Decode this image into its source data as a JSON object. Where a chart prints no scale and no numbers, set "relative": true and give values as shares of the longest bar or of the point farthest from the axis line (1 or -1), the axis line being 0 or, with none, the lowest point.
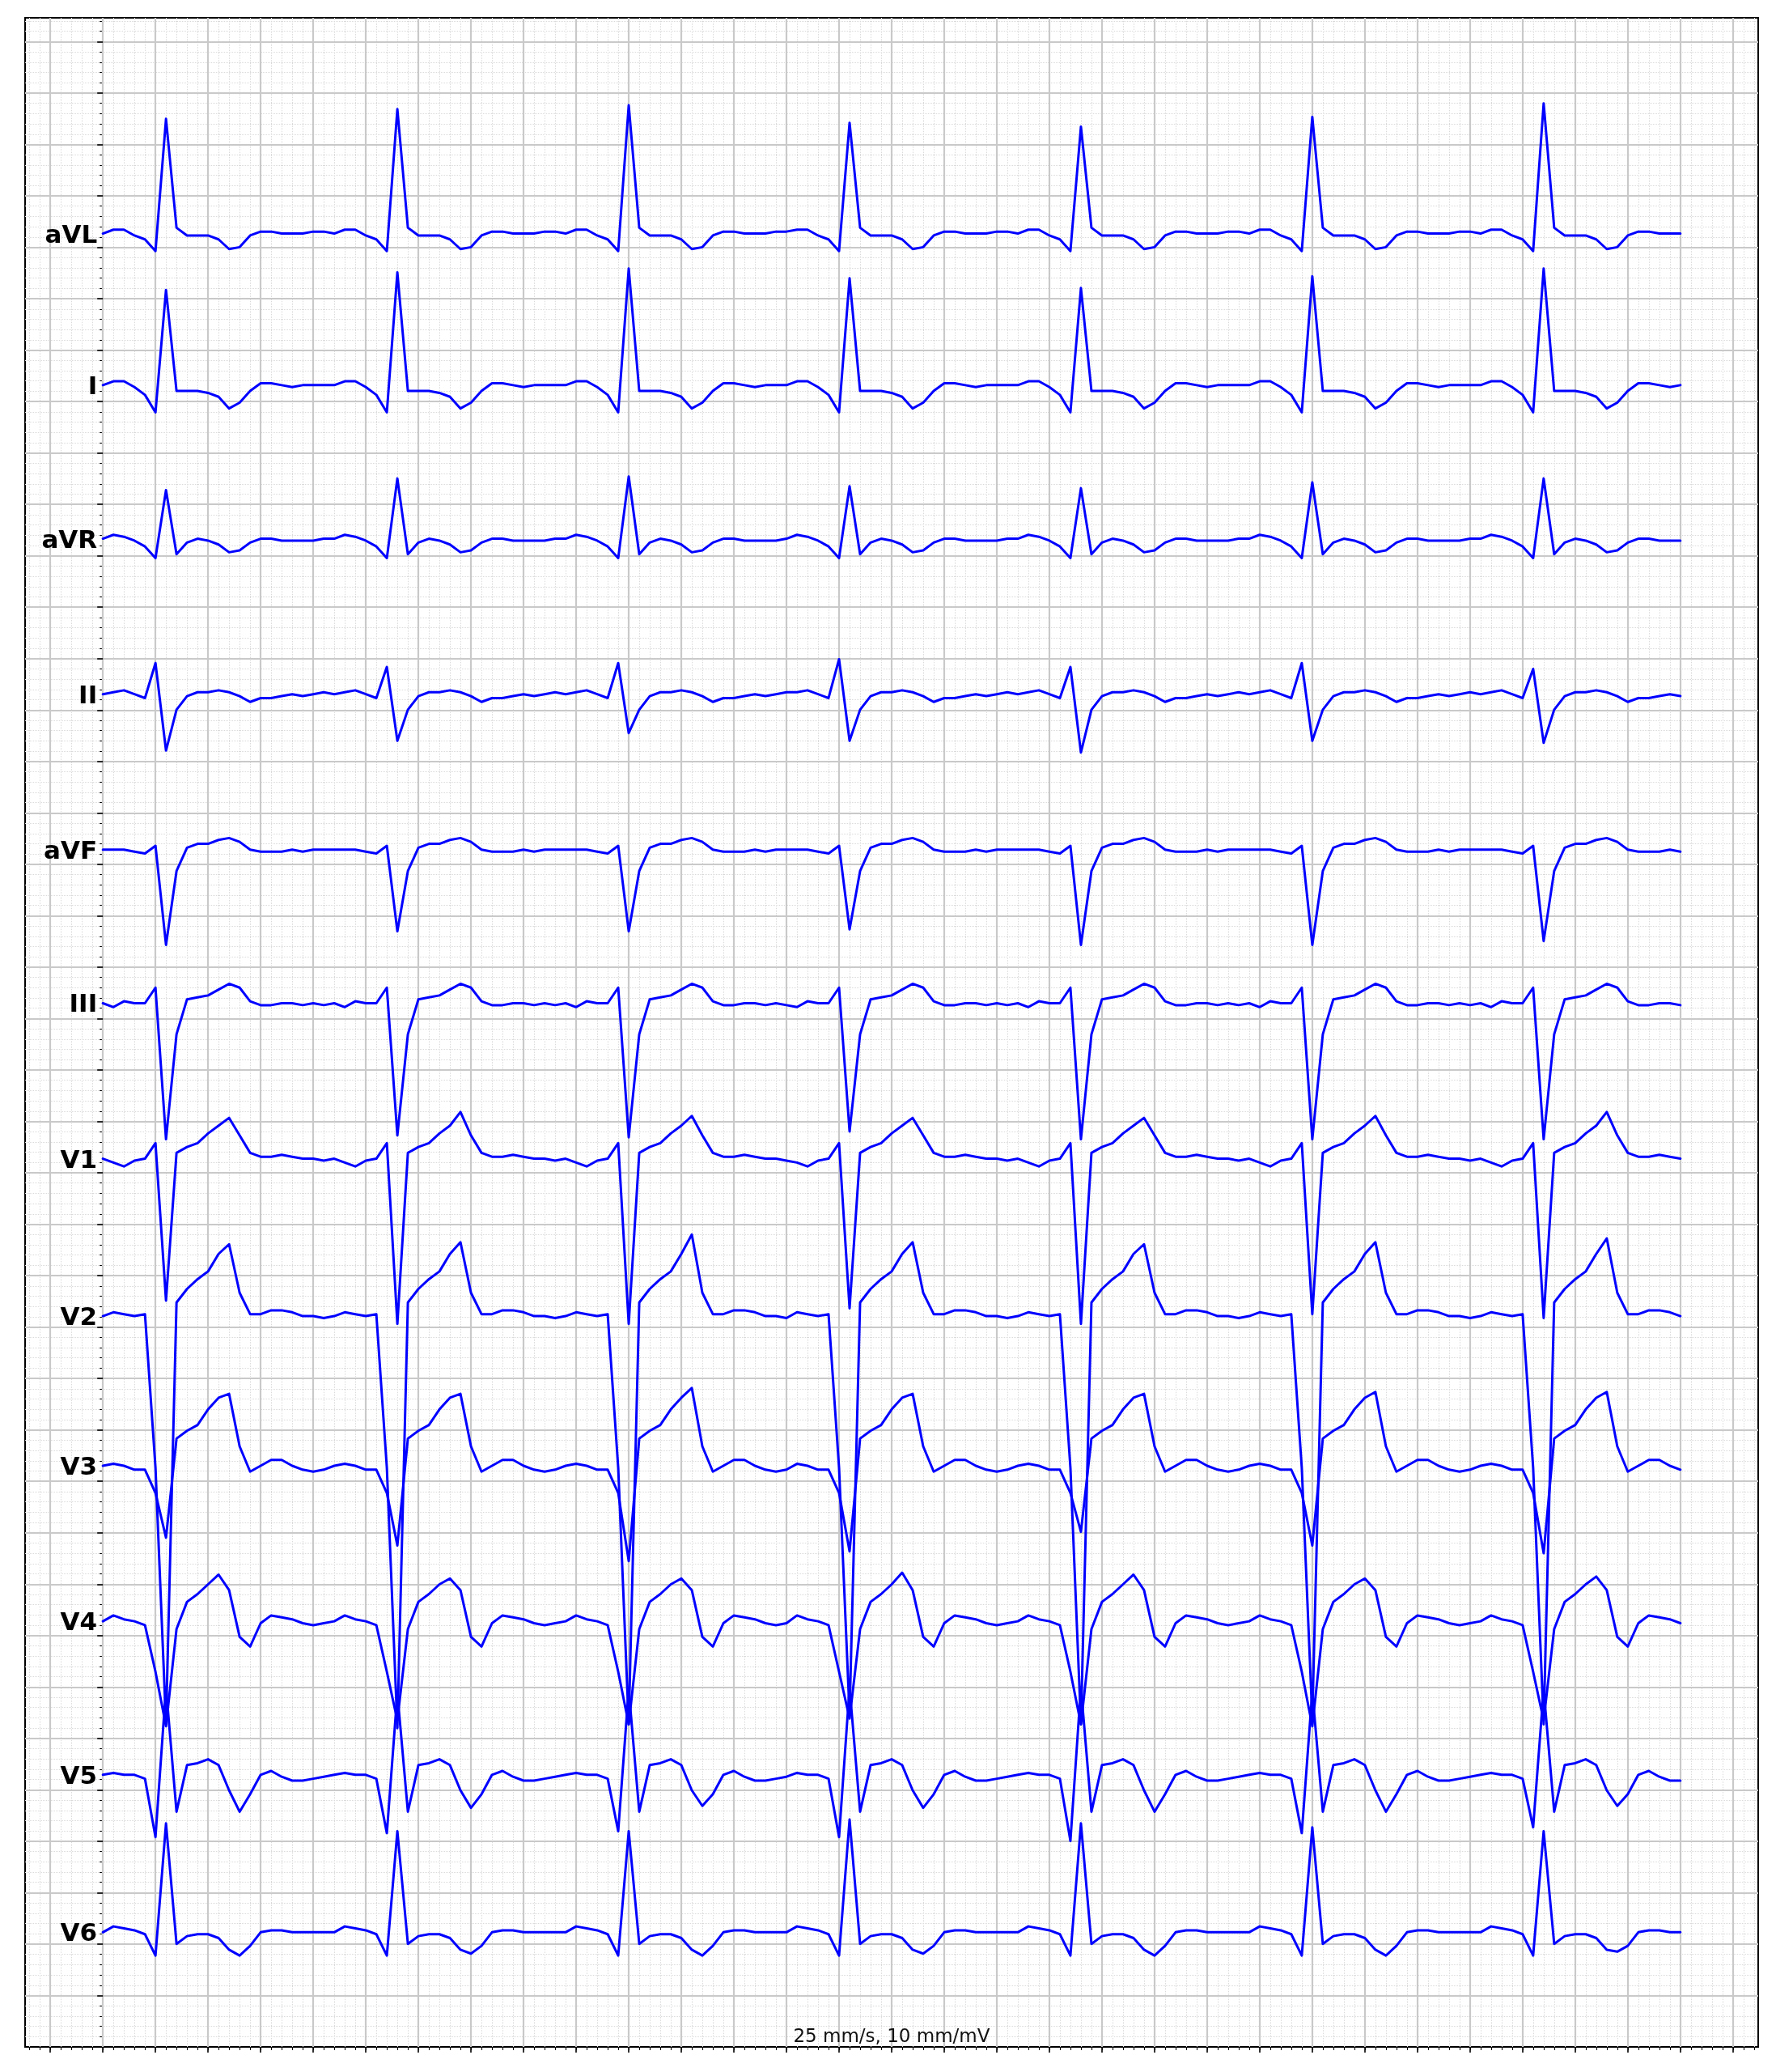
{
  "chart_data": {
    "type": "line",
    "relative": true,
    "grid": true,
    "annotations": [
      "25 mm/s, 10 mm/mV"
    ],
    "categories": [
      null,
      null,
      null,
      null,
      null,
      null,
      null,
      null,
      null,
      null,
      null,
      null,
      null,
      null,
      null,
      null,
      null,
      null,
      null,
      null,
      null,
      null,
      null,
      null,
      null,
      null,
      null,
      null,
      null,
      null,
      null,
      null,
      null,
      null,
      null,
      null,
      null,
      null,
      null,
      null,
      null,
      null,
      null,
      null,
      null,
      null,
      null,
      null,
      null,
      null,
      null,
      null,
      null,
      null,
      null,
      null,
      null,
      null,
      null,
      null,
      null,
      null,
      null,
      null,
      null,
      null,
      null,
      null,
      null,
      null,
      null,
      null,
      null,
      null,
      null,
      null,
      null,
      null,
      null,
      null,
      null,
      null,
      null,
      null,
      null,
      null,
      null,
      null,
      null,
      null,
      null,
      null,
      null,
      null,
      null,
      null,
      null,
      null,
      null,
      null,
      null,
      null,
      null,
      null,
      null,
      null,
      null,
      null,
      null,
      null,
      null,
      null,
      null,
      null,
      null,
      null,
      null,
      null,
      null,
      null,
      null,
      null,
      null,
      null,
      null,
      null,
      null,
      null,
      null,
      null,
      null,
      null,
      null,
      null,
      null,
      null,
      null,
      null,
      null,
      null,
      null,
      null,
      null,
      null,
      null,
      null,
      null,
      null,
      null,
      null,
      null
    ],
    "series": [
      {
        "name": "aVL",
        "color": "#0000ff",
        "values": [
          0.933,
          0.935,
          0.935,
          0.932,
          0.93,
          0.924,
          0.992,
          0.936,
          0.932,
          0.932,
          0.932,
          0.93,
          0.925,
          0.926,
          0.932,
          0.934,
          0.934,
          0.933,
          0.933,
          0.933,
          0.934,
          0.934,
          0.933,
          0.935,
          0.935,
          0.932,
          0.93,
          0.924,
          0.997,
          0.936,
          0.932,
          0.932,
          0.932,
          0.93,
          0.925,
          0.926,
          0.932,
          0.934,
          0.934,
          0.933,
          0.933,
          0.933,
          0.934,
          0.934,
          0.933,
          0.935,
          0.935,
          0.932,
          0.93,
          0.924,
          0.999,
          0.936,
          0.932,
          0.932,
          0.932,
          0.93,
          0.925,
          0.926,
          0.932,
          0.934,
          0.934,
          0.933,
          0.933,
          0.933,
          0.934,
          0.934,
          0.935,
          0.935,
          0.932,
          0.93,
          0.924,
          0.99,
          0.936,
          0.932,
          0.932,
          0.932,
          0.93,
          0.925,
          0.926,
          0.932,
          0.934,
          0.934,
          0.933,
          0.933,
          0.933,
          0.934,
          0.934,
          0.933,
          0.935,
          0.935,
          0.932,
          0.93,
          0.924,
          0.988,
          0.936,
          0.932,
          0.932,
          0.932,
          0.93,
          0.925,
          0.926,
          0.932,
          0.934,
          0.934,
          0.933,
          0.933,
          0.933,
          0.934,
          0.934,
          0.933,
          0.935,
          0.935,
          0.932,
          0.93,
          0.924,
          0.993,
          0.936,
          0.932,
          0.932,
          0.932,
          0.93,
          0.925,
          0.926,
          0.932,
          0.934,
          0.934,
          0.933,
          0.933,
          0.933,
          0.934,
          0.934,
          0.933,
          0.935,
          0.935,
          0.932,
          0.93,
          0.924,
          1.0,
          0.936,
          0.932,
          0.932,
          0.932,
          0.93,
          0.925,
          0.926,
          0.932,
          0.934,
          0.934,
          0.933,
          0.933,
          0.933
        ]
      },
      {
        "name": "I",
        "color": "#0000ff",
        "values": [
          0.855,
          0.857,
          0.857,
          0.854,
          0.85,
          0.841,
          0.904,
          0.852,
          0.852,
          0.852,
          0.851,
          0.849,
          0.843,
          0.846,
          0.852,
          0.856,
          0.856,
          0.855,
          0.854,
          0.855,
          0.855,
          0.855,
          0.855,
          0.857,
          0.857,
          0.854,
          0.85,
          0.841,
          0.913,
          0.852,
          0.852,
          0.852,
          0.851,
          0.849,
          0.843,
          0.846,
          0.852,
          0.856,
          0.856,
          0.855,
          0.854,
          0.855,
          0.855,
          0.855,
          0.855,
          0.857,
          0.857,
          0.854,
          0.85,
          0.841,
          0.915,
          0.852,
          0.852,
          0.852,
          0.851,
          0.849,
          0.843,
          0.846,
          0.852,
          0.856,
          0.856,
          0.855,
          0.854,
          0.855,
          0.855,
          0.855,
          0.857,
          0.857,
          0.854,
          0.85,
          0.841,
          0.91,
          0.852,
          0.852,
          0.852,
          0.851,
          0.849,
          0.843,
          0.846,
          0.852,
          0.856,
          0.856,
          0.855,
          0.854,
          0.855,
          0.855,
          0.855,
          0.855,
          0.857,
          0.857,
          0.854,
          0.85,
          0.841,
          0.905,
          0.852,
          0.852,
          0.852,
          0.851,
          0.849,
          0.843,
          0.846,
          0.852,
          0.856,
          0.856,
          0.855,
          0.854,
          0.855,
          0.855,
          0.855,
          0.855,
          0.857,
          0.857,
          0.854,
          0.85,
          0.841,
          0.911,
          0.852,
          0.852,
          0.852,
          0.851,
          0.849,
          0.843,
          0.846,
          0.852,
          0.856,
          0.856,
          0.855,
          0.854,
          0.855,
          0.855,
          0.855,
          0.855,
          0.857,
          0.857,
          0.854,
          0.85,
          0.841,
          0.915,
          0.852,
          0.852,
          0.852,
          0.851,
          0.849,
          0.843,
          0.846,
          0.852,
          0.856,
          0.856,
          0.855,
          0.854,
          0.855
        ]
      },
      {
        "name": "aVR",
        "color": "#0000ff",
        "values": [
          0.776,
          0.778,
          0.777,
          0.775,
          0.772,
          0.766,
          0.801,
          0.768,
          0.774,
          0.776,
          0.775,
          0.773,
          0.769,
          0.77,
          0.774,
          0.776,
          0.776,
          0.775,
          0.775,
          0.775,
          0.775,
          0.776,
          0.776,
          0.778,
          0.777,
          0.775,
          0.772,
          0.766,
          0.807,
          0.768,
          0.774,
          0.776,
          0.775,
          0.773,
          0.769,
          0.77,
          0.774,
          0.776,
          0.776,
          0.775,
          0.775,
          0.775,
          0.775,
          0.776,
          0.776,
          0.778,
          0.777,
          0.775,
          0.772,
          0.766,
          0.808,
          0.768,
          0.774,
          0.776,
          0.775,
          0.773,
          0.769,
          0.77,
          0.774,
          0.776,
          0.776,
          0.775,
          0.775,
          0.775,
          0.775,
          0.776,
          0.778,
          0.777,
          0.775,
          0.772,
          0.766,
          0.803,
          0.768,
          0.774,
          0.776,
          0.775,
          0.773,
          0.769,
          0.77,
          0.774,
          0.776,
          0.776,
          0.775,
          0.775,
          0.775,
          0.775,
          0.776,
          0.776,
          0.778,
          0.777,
          0.775,
          0.772,
          0.766,
          0.802,
          0.768,
          0.774,
          0.776,
          0.775,
          0.773,
          0.769,
          0.77,
          0.774,
          0.776,
          0.776,
          0.775,
          0.775,
          0.775,
          0.775,
          0.776,
          0.776,
          0.778,
          0.777,
          0.775,
          0.772,
          0.766,
          0.805,
          0.768,
          0.774,
          0.776,
          0.775,
          0.773,
          0.769,
          0.77,
          0.774,
          0.776,
          0.776,
          0.775,
          0.775,
          0.775,
          0.775,
          0.776,
          0.776,
          0.778,
          0.777,
          0.775,
          0.772,
          0.766,
          0.807,
          0.768,
          0.774,
          0.776,
          0.775,
          0.773,
          0.769,
          0.77,
          0.774,
          0.776,
          0.776,
          0.775,
          0.775,
          0.775
        ]
      },
      {
        "name": "II",
        "color": "#0000ff",
        "values": [
          0.696,
          0.697,
          0.698,
          0.696,
          0.694,
          0.712,
          0.667,
          0.688,
          0.695,
          0.697,
          0.697,
          0.698,
          0.697,
          0.695,
          0.692,
          0.694,
          0.694,
          0.695,
          0.696,
          0.695,
          0.696,
          0.697,
          0.696,
          0.697,
          0.698,
          0.696,
          0.694,
          0.71,
          0.672,
          0.688,
          0.695,
          0.697,
          0.697,
          0.698,
          0.697,
          0.695,
          0.692,
          0.694,
          0.694,
          0.695,
          0.696,
          0.695,
          0.696,
          0.697,
          0.696,
          0.697,
          0.698,
          0.696,
          0.694,
          0.712,
          0.676,
          0.688,
          0.695,
          0.697,
          0.697,
          0.698,
          0.697,
          0.695,
          0.692,
          0.694,
          0.694,
          0.695,
          0.696,
          0.695,
          0.696,
          0.697,
          0.697,
          0.698,
          0.696,
          0.694,
          0.714,
          0.672,
          0.688,
          0.695,
          0.697,
          0.697,
          0.698,
          0.697,
          0.695,
          0.692,
          0.694,
          0.694,
          0.695,
          0.696,
          0.695,
          0.696,
          0.697,
          0.696,
          0.697,
          0.698,
          0.696,
          0.694,
          0.71,
          0.666,
          0.688,
          0.695,
          0.697,
          0.697,
          0.698,
          0.697,
          0.695,
          0.692,
          0.694,
          0.694,
          0.695,
          0.696,
          0.695,
          0.696,
          0.697,
          0.696,
          0.697,
          0.698,
          0.696,
          0.694,
          0.712,
          0.672,
          0.688,
          0.695,
          0.697,
          0.697,
          0.698,
          0.697,
          0.695,
          0.692,
          0.694,
          0.694,
          0.695,
          0.696,
          0.695,
          0.696,
          0.697,
          0.696,
          0.697,
          0.698,
          0.696,
          0.694,
          0.709,
          0.671,
          0.688,
          0.695,
          0.697,
          0.697,
          0.698,
          0.697,
          0.695,
          0.692,
          0.694,
          0.694,
          0.695,
          0.696,
          0.695
        ]
      },
      {
        "name": "aVF",
        "color": "#0000ff",
        "values": [
          0.616,
          0.616,
          0.616,
          0.615,
          0.614,
          0.618,
          0.567,
          0.605,
          0.617,
          0.619,
          0.619,
          0.621,
          0.622,
          0.62,
          0.616,
          0.615,
          0.615,
          0.615,
          0.616,
          0.615,
          0.616,
          0.616,
          0.616,
          0.616,
          0.616,
          0.615,
          0.614,
          0.618,
          0.574,
          0.605,
          0.617,
          0.619,
          0.619,
          0.621,
          0.622,
          0.62,
          0.616,
          0.615,
          0.615,
          0.615,
          0.616,
          0.615,
          0.616,
          0.616,
          0.616,
          0.616,
          0.616,
          0.615,
          0.614,
          0.618,
          0.574,
          0.605,
          0.617,
          0.619,
          0.619,
          0.621,
          0.622,
          0.62,
          0.616,
          0.615,
          0.615,
          0.615,
          0.616,
          0.615,
          0.616,
          0.616,
          0.616,
          0.616,
          0.615,
          0.614,
          0.618,
          0.575,
          0.605,
          0.617,
          0.619,
          0.619,
          0.621,
          0.622,
          0.62,
          0.616,
          0.615,
          0.615,
          0.615,
          0.616,
          0.615,
          0.616,
          0.616,
          0.616,
          0.616,
          0.616,
          0.615,
          0.614,
          0.618,
          0.567,
          0.605,
          0.617,
          0.619,
          0.619,
          0.621,
          0.622,
          0.62,
          0.616,
          0.615,
          0.615,
          0.615,
          0.616,
          0.615,
          0.616,
          0.616,
          0.616,
          0.616,
          0.616,
          0.615,
          0.614,
          0.618,
          0.567,
          0.605,
          0.617,
          0.619,
          0.619,
          0.621,
          0.622,
          0.62,
          0.616,
          0.615,
          0.615,
          0.615,
          0.616,
          0.615,
          0.616,
          0.616,
          0.616,
          0.616,
          0.616,
          0.615,
          0.614,
          0.618,
          0.569,
          0.605,
          0.617,
          0.619,
          0.619,
          0.621,
          0.622,
          0.62,
          0.616,
          0.615,
          0.615,
          0.615,
          0.616,
          0.615
        ]
      },
      {
        "name": "III",
        "color": "#0000ff",
        "values": [
          0.537,
          0.535,
          0.538,
          0.537,
          0.537,
          0.545,
          0.467,
          0.521,
          0.539,
          0.54,
          0.541,
          0.544,
          0.547,
          0.545,
          0.538,
          0.536,
          0.536,
          0.537,
          0.537,
          0.536,
          0.537,
          0.536,
          0.537,
          0.535,
          0.538,
          0.537,
          0.537,
          0.545,
          0.469,
          0.521,
          0.539,
          0.54,
          0.541,
          0.544,
          0.547,
          0.545,
          0.538,
          0.536,
          0.536,
          0.537,
          0.537,
          0.536,
          0.537,
          0.536,
          0.537,
          0.535,
          0.538,
          0.537,
          0.537,
          0.545,
          0.468,
          0.521,
          0.539,
          0.54,
          0.541,
          0.544,
          0.547,
          0.545,
          0.538,
          0.536,
          0.536,
          0.537,
          0.537,
          0.536,
          0.537,
          0.536,
          0.535,
          0.538,
          0.537,
          0.537,
          0.545,
          0.471,
          0.521,
          0.539,
          0.54,
          0.541,
          0.544,
          0.547,
          0.545,
          0.538,
          0.536,
          0.536,
          0.537,
          0.537,
          0.536,
          0.537,
          0.536,
          0.537,
          0.535,
          0.538,
          0.537,
          0.537,
          0.545,
          0.467,
          0.521,
          0.539,
          0.54,
          0.541,
          0.544,
          0.547,
          0.545,
          0.538,
          0.536,
          0.536,
          0.537,
          0.537,
          0.536,
          0.537,
          0.536,
          0.537,
          0.535,
          0.538,
          0.537,
          0.537,
          0.545,
          0.467,
          0.521,
          0.539,
          0.54,
          0.541,
          0.544,
          0.547,
          0.545,
          0.538,
          0.536,
          0.536,
          0.537,
          0.537,
          0.536,
          0.537,
          0.536,
          0.537,
          0.535,
          0.538,
          0.537,
          0.537,
          0.545,
          0.467,
          0.521,
          0.539,
          0.54,
          0.541,
          0.544,
          0.547,
          0.545,
          0.538,
          0.536,
          0.536,
          0.537,
          0.537,
          0.536
        ]
      },
      {
        "name": "V1",
        "color": "#0000ff",
        "values": [
          0.457,
          0.455,
          0.453,
          0.456,
          0.457,
          0.465,
          0.384,
          0.46,
          0.463,
          0.465,
          0.47,
          0.474,
          0.478,
          0.469,
          0.46,
          0.458,
          0.458,
          0.459,
          0.458,
          0.457,
          0.457,
          0.456,
          0.457,
          0.455,
          0.453,
          0.456,
          0.457,
          0.465,
          0.372,
          0.46,
          0.463,
          0.465,
          0.47,
          0.474,
          0.481,
          0.469,
          0.46,
          0.458,
          0.458,
          0.459,
          0.458,
          0.457,
          0.457,
          0.456,
          0.457,
          0.455,
          0.453,
          0.456,
          0.457,
          0.465,
          0.372,
          0.46,
          0.463,
          0.465,
          0.47,
          0.474,
          0.479,
          0.469,
          0.46,
          0.458,
          0.458,
          0.459,
          0.458,
          0.457,
          0.457,
          0.456,
          0.455,
          0.453,
          0.456,
          0.457,
          0.465,
          0.38,
          0.46,
          0.463,
          0.465,
          0.47,
          0.474,
          0.478,
          0.469,
          0.46,
          0.458,
          0.458,
          0.459,
          0.458,
          0.457,
          0.457,
          0.456,
          0.457,
          0.455,
          0.453,
          0.456,
          0.457,
          0.465,
          0.372,
          0.46,
          0.463,
          0.465,
          0.47,
          0.474,
          0.478,
          0.469,
          0.46,
          0.458,
          0.458,
          0.459,
          0.458,
          0.457,
          0.457,
          0.456,
          0.457,
          0.455,
          0.453,
          0.456,
          0.457,
          0.465,
          0.377,
          0.46,
          0.463,
          0.465,
          0.47,
          0.474,
          0.479,
          0.469,
          0.46,
          0.458,
          0.458,
          0.459,
          0.458,
          0.457,
          0.457,
          0.456,
          0.457,
          0.455,
          0.453,
          0.456,
          0.457,
          0.465,
          0.375,
          0.46,
          0.463,
          0.465,
          0.47,
          0.474,
          0.481,
          0.469,
          0.46,
          0.458,
          0.458,
          0.459,
          0.458,
          0.457
        ]
      },
      {
        "name": "V2",
        "color": "#0000ff",
        "values": [
          0.376,
          0.378,
          0.377,
          0.376,
          0.377,
          0.298,
          0.166,
          0.383,
          0.39,
          0.395,
          0.399,
          0.408,
          0.413,
          0.388,
          0.377,
          0.377,
          0.379,
          0.379,
          0.378,
          0.376,
          0.376,
          0.375,
          0.376,
          0.378,
          0.377,
          0.376,
          0.377,
          0.298,
          0.164,
          0.383,
          0.39,
          0.395,
          0.399,
          0.408,
          0.414,
          0.388,
          0.377,
          0.377,
          0.379,
          0.379,
          0.378,
          0.376,
          0.376,
          0.375,
          0.376,
          0.378,
          0.377,
          0.376,
          0.377,
          0.298,
          0.166,
          0.383,
          0.39,
          0.395,
          0.399,
          0.408,
          0.418,
          0.388,
          0.377,
          0.377,
          0.379,
          0.379,
          0.378,
          0.376,
          0.376,
          0.375,
          0.378,
          0.377,
          0.376,
          0.377,
          0.298,
          0.171,
          0.383,
          0.39,
          0.395,
          0.399,
          0.408,
          0.414,
          0.388,
          0.377,
          0.377,
          0.379,
          0.379,
          0.378,
          0.376,
          0.376,
          0.375,
          0.376,
          0.378,
          0.377,
          0.376,
          0.377,
          0.298,
          0.166,
          0.383,
          0.39,
          0.395,
          0.399,
          0.408,
          0.413,
          0.388,
          0.377,
          0.377,
          0.379,
          0.379,
          0.378,
          0.376,
          0.376,
          0.375,
          0.376,
          0.378,
          0.377,
          0.376,
          0.377,
          0.298,
          0.169,
          0.383,
          0.39,
          0.395,
          0.399,
          0.408,
          0.414,
          0.388,
          0.377,
          0.377,
          0.379,
          0.379,
          0.378,
          0.376,
          0.376,
          0.375,
          0.376,
          0.378,
          0.377,
          0.376,
          0.377,
          0.298,
          0.166,
          0.383,
          0.39,
          0.395,
          0.399,
          0.408,
          0.416,
          0.388,
          0.377,
          0.377,
          0.379,
          0.379,
          0.378,
          0.376
        ]
      },
      {
        "name": "V3",
        "color": "#0000ff",
        "values": [
          0.299,
          0.3,
          0.299,
          0.297,
          0.297,
          0.285,
          0.262,
          0.313,
          0.317,
          0.32,
          0.328,
          0.334,
          0.336,
          0.309,
          0.296,
          0.299,
          0.302,
          0.302,
          0.299,
          0.297,
          0.296,
          0.297,
          0.299,
          0.3,
          0.299,
          0.297,
          0.297,
          0.285,
          0.258,
          0.313,
          0.317,
          0.32,
          0.328,
          0.334,
          0.336,
          0.309,
          0.296,
          0.299,
          0.302,
          0.302,
          0.299,
          0.297,
          0.296,
          0.297,
          0.299,
          0.3,
          0.299,
          0.297,
          0.297,
          0.285,
          0.25,
          0.313,
          0.317,
          0.32,
          0.328,
          0.334,
          0.339,
          0.309,
          0.296,
          0.299,
          0.302,
          0.302,
          0.299,
          0.297,
          0.296,
          0.297,
          0.3,
          0.299,
          0.297,
          0.297,
          0.285,
          0.255,
          0.313,
          0.317,
          0.32,
          0.328,
          0.334,
          0.336,
          0.309,
          0.296,
          0.299,
          0.302,
          0.302,
          0.299,
          0.297,
          0.296,
          0.297,
          0.299,
          0.3,
          0.299,
          0.297,
          0.297,
          0.285,
          0.265,
          0.313,
          0.317,
          0.32,
          0.328,
          0.334,
          0.336,
          0.309,
          0.296,
          0.299,
          0.302,
          0.302,
          0.299,
          0.297,
          0.296,
          0.297,
          0.299,
          0.3,
          0.299,
          0.297,
          0.297,
          0.285,
          0.258,
          0.313,
          0.317,
          0.32,
          0.328,
          0.334,
          0.337,
          0.309,
          0.296,
          0.299,
          0.302,
          0.302,
          0.299,
          0.297,
          0.296,
          0.297,
          0.299,
          0.3,
          0.299,
          0.297,
          0.297,
          0.285,
          0.254,
          0.313,
          0.317,
          0.32,
          0.328,
          0.334,
          0.337,
          0.309,
          0.296,
          0.299,
          0.302,
          0.302,
          0.299,
          0.297
        ]
      },
      {
        "name": "V4",
        "color": "#0000ff",
        "values": [
          0.219,
          0.222,
          0.22,
          0.219,
          0.217,
          0.193,
          0.165,
          0.215,
          0.229,
          0.233,
          0.238,
          0.243,
          0.235,
          0.211,
          0.206,
          0.218,
          0.222,
          0.221,
          0.22,
          0.218,
          0.217,
          0.218,
          0.219,
          0.222,
          0.22,
          0.219,
          0.217,
          0.193,
          0.168,
          0.215,
          0.229,
          0.233,
          0.238,
          0.241,
          0.235,
          0.211,
          0.206,
          0.218,
          0.222,
          0.221,
          0.22,
          0.218,
          0.217,
          0.218,
          0.219,
          0.222,
          0.22,
          0.219,
          0.217,
          0.193,
          0.166,
          0.215,
          0.229,
          0.233,
          0.238,
          0.241,
          0.235,
          0.211,
          0.206,
          0.218,
          0.222,
          0.221,
          0.22,
          0.218,
          0.217,
          0.218,
          0.222,
          0.22,
          0.219,
          0.217,
          0.193,
          0.169,
          0.215,
          0.229,
          0.233,
          0.238,
          0.244,
          0.235,
          0.211,
          0.206,
          0.218,
          0.222,
          0.221,
          0.22,
          0.218,
          0.217,
          0.218,
          0.219,
          0.222,
          0.22,
          0.219,
          0.217,
          0.193,
          0.166,
          0.215,
          0.229,
          0.233,
          0.238,
          0.243,
          0.235,
          0.211,
          0.206,
          0.218,
          0.222,
          0.221,
          0.22,
          0.218,
          0.217,
          0.218,
          0.219,
          0.222,
          0.22,
          0.219,
          0.217,
          0.193,
          0.165,
          0.215,
          0.229,
          0.233,
          0.238,
          0.241,
          0.235,
          0.211,
          0.206,
          0.218,
          0.222,
          0.221,
          0.22,
          0.218,
          0.217,
          0.218,
          0.219,
          0.222,
          0.22,
          0.219,
          0.217,
          0.193,
          0.168,
          0.215,
          0.229,
          0.233,
          0.238,
          0.242,
          0.235,
          0.211,
          0.206,
          0.218,
          0.222,
          0.221,
          0.22,
          0.218
        ]
      },
      {
        "name": "V5",
        "color": "#0000ff",
        "values": [
          0.14,
          0.141,
          0.14,
          0.14,
          0.138,
          0.108,
          0.185,
          0.121,
          0.145,
          0.146,
          0.148,
          0.145,
          0.132,
          0.121,
          0.13,
          0.14,
          0.142,
          0.139,
          0.137,
          0.137,
          0.138,
          0.139,
          0.14,
          0.141,
          0.14,
          0.14,
          0.138,
          0.11,
          0.182,
          0.121,
          0.145,
          0.146,
          0.148,
          0.145,
          0.132,
          0.123,
          0.13,
          0.14,
          0.142,
          0.139,
          0.137,
          0.137,
          0.138,
          0.139,
          0.14,
          0.141,
          0.14,
          0.14,
          0.138,
          0.111,
          0.184,
          0.121,
          0.145,
          0.146,
          0.148,
          0.145,
          0.132,
          0.124,
          0.13,
          0.14,
          0.142,
          0.139,
          0.137,
          0.137,
          0.138,
          0.139,
          0.141,
          0.14,
          0.14,
          0.138,
          0.108,
          0.185,
          0.121,
          0.145,
          0.146,
          0.148,
          0.145,
          0.132,
          0.123,
          0.13,
          0.14,
          0.142,
          0.139,
          0.137,
          0.137,
          0.138,
          0.139,
          0.14,
          0.141,
          0.14,
          0.14,
          0.138,
          0.106,
          0.185,
          0.121,
          0.145,
          0.146,
          0.148,
          0.145,
          0.132,
          0.121,
          0.13,
          0.14,
          0.142,
          0.139,
          0.137,
          0.137,
          0.138,
          0.139,
          0.14,
          0.141,
          0.14,
          0.14,
          0.138,
          0.11,
          0.183,
          0.121,
          0.145,
          0.146,
          0.148,
          0.145,
          0.132,
          0.121,
          0.13,
          0.14,
          0.142,
          0.139,
          0.137,
          0.137,
          0.138,
          0.139,
          0.14,
          0.141,
          0.14,
          0.14,
          0.138,
          0.113,
          0.184,
          0.121,
          0.145,
          0.146,
          0.148,
          0.145,
          0.132,
          0.124,
          0.13,
          0.14,
          0.142,
          0.139,
          0.137,
          0.137
        ]
      },
      {
        "name": "V6",
        "color": "#0000ff",
        "values": [
          0.059,
          0.062,
          0.061,
          0.06,
          0.058,
          0.047,
          0.115,
          0.053,
          0.057,
          0.058,
          0.058,
          0.056,
          0.05,
          0.047,
          0.052,
          0.059,
          0.06,
          0.06,
          0.059,
          0.059,
          0.059,
          0.059,
          0.059,
          0.062,
          0.061,
          0.06,
          0.058,
          0.047,
          0.111,
          0.053,
          0.057,
          0.058,
          0.058,
          0.056,
          0.05,
          0.048,
          0.052,
          0.059,
          0.06,
          0.06,
          0.059,
          0.059,
          0.059,
          0.059,
          0.059,
          0.062,
          0.061,
          0.06,
          0.058,
          0.047,
          0.111,
          0.053,
          0.057,
          0.058,
          0.058,
          0.056,
          0.05,
          0.047,
          0.052,
          0.059,
          0.06,
          0.06,
          0.059,
          0.059,
          0.059,
          0.059,
          0.062,
          0.061,
          0.06,
          0.058,
          0.047,
          0.117,
          0.053,
          0.057,
          0.058,
          0.058,
          0.056,
          0.05,
          0.048,
          0.052,
          0.059,
          0.06,
          0.06,
          0.059,
          0.059,
          0.059,
          0.059,
          0.059,
          0.062,
          0.061,
          0.06,
          0.058,
          0.047,
          0.115,
          0.053,
          0.057,
          0.058,
          0.058,
          0.056,
          0.05,
          0.047,
          0.052,
          0.059,
          0.06,
          0.06,
          0.059,
          0.059,
          0.059,
          0.059,
          0.059,
          0.062,
          0.061,
          0.06,
          0.058,
          0.047,
          0.113,
          0.053,
          0.057,
          0.058,
          0.058,
          0.056,
          0.05,
          0.047,
          0.052,
          0.059,
          0.06,
          0.06,
          0.059,
          0.059,
          0.059,
          0.059,
          0.059,
          0.062,
          0.061,
          0.06,
          0.058,
          0.047,
          0.111,
          0.053,
          0.057,
          0.058,
          0.058,
          0.056,
          0.05,
          0.049,
          0.052,
          0.059,
          0.06,
          0.06,
          0.059,
          0.059
        ]
      }
    ]
  }
}
